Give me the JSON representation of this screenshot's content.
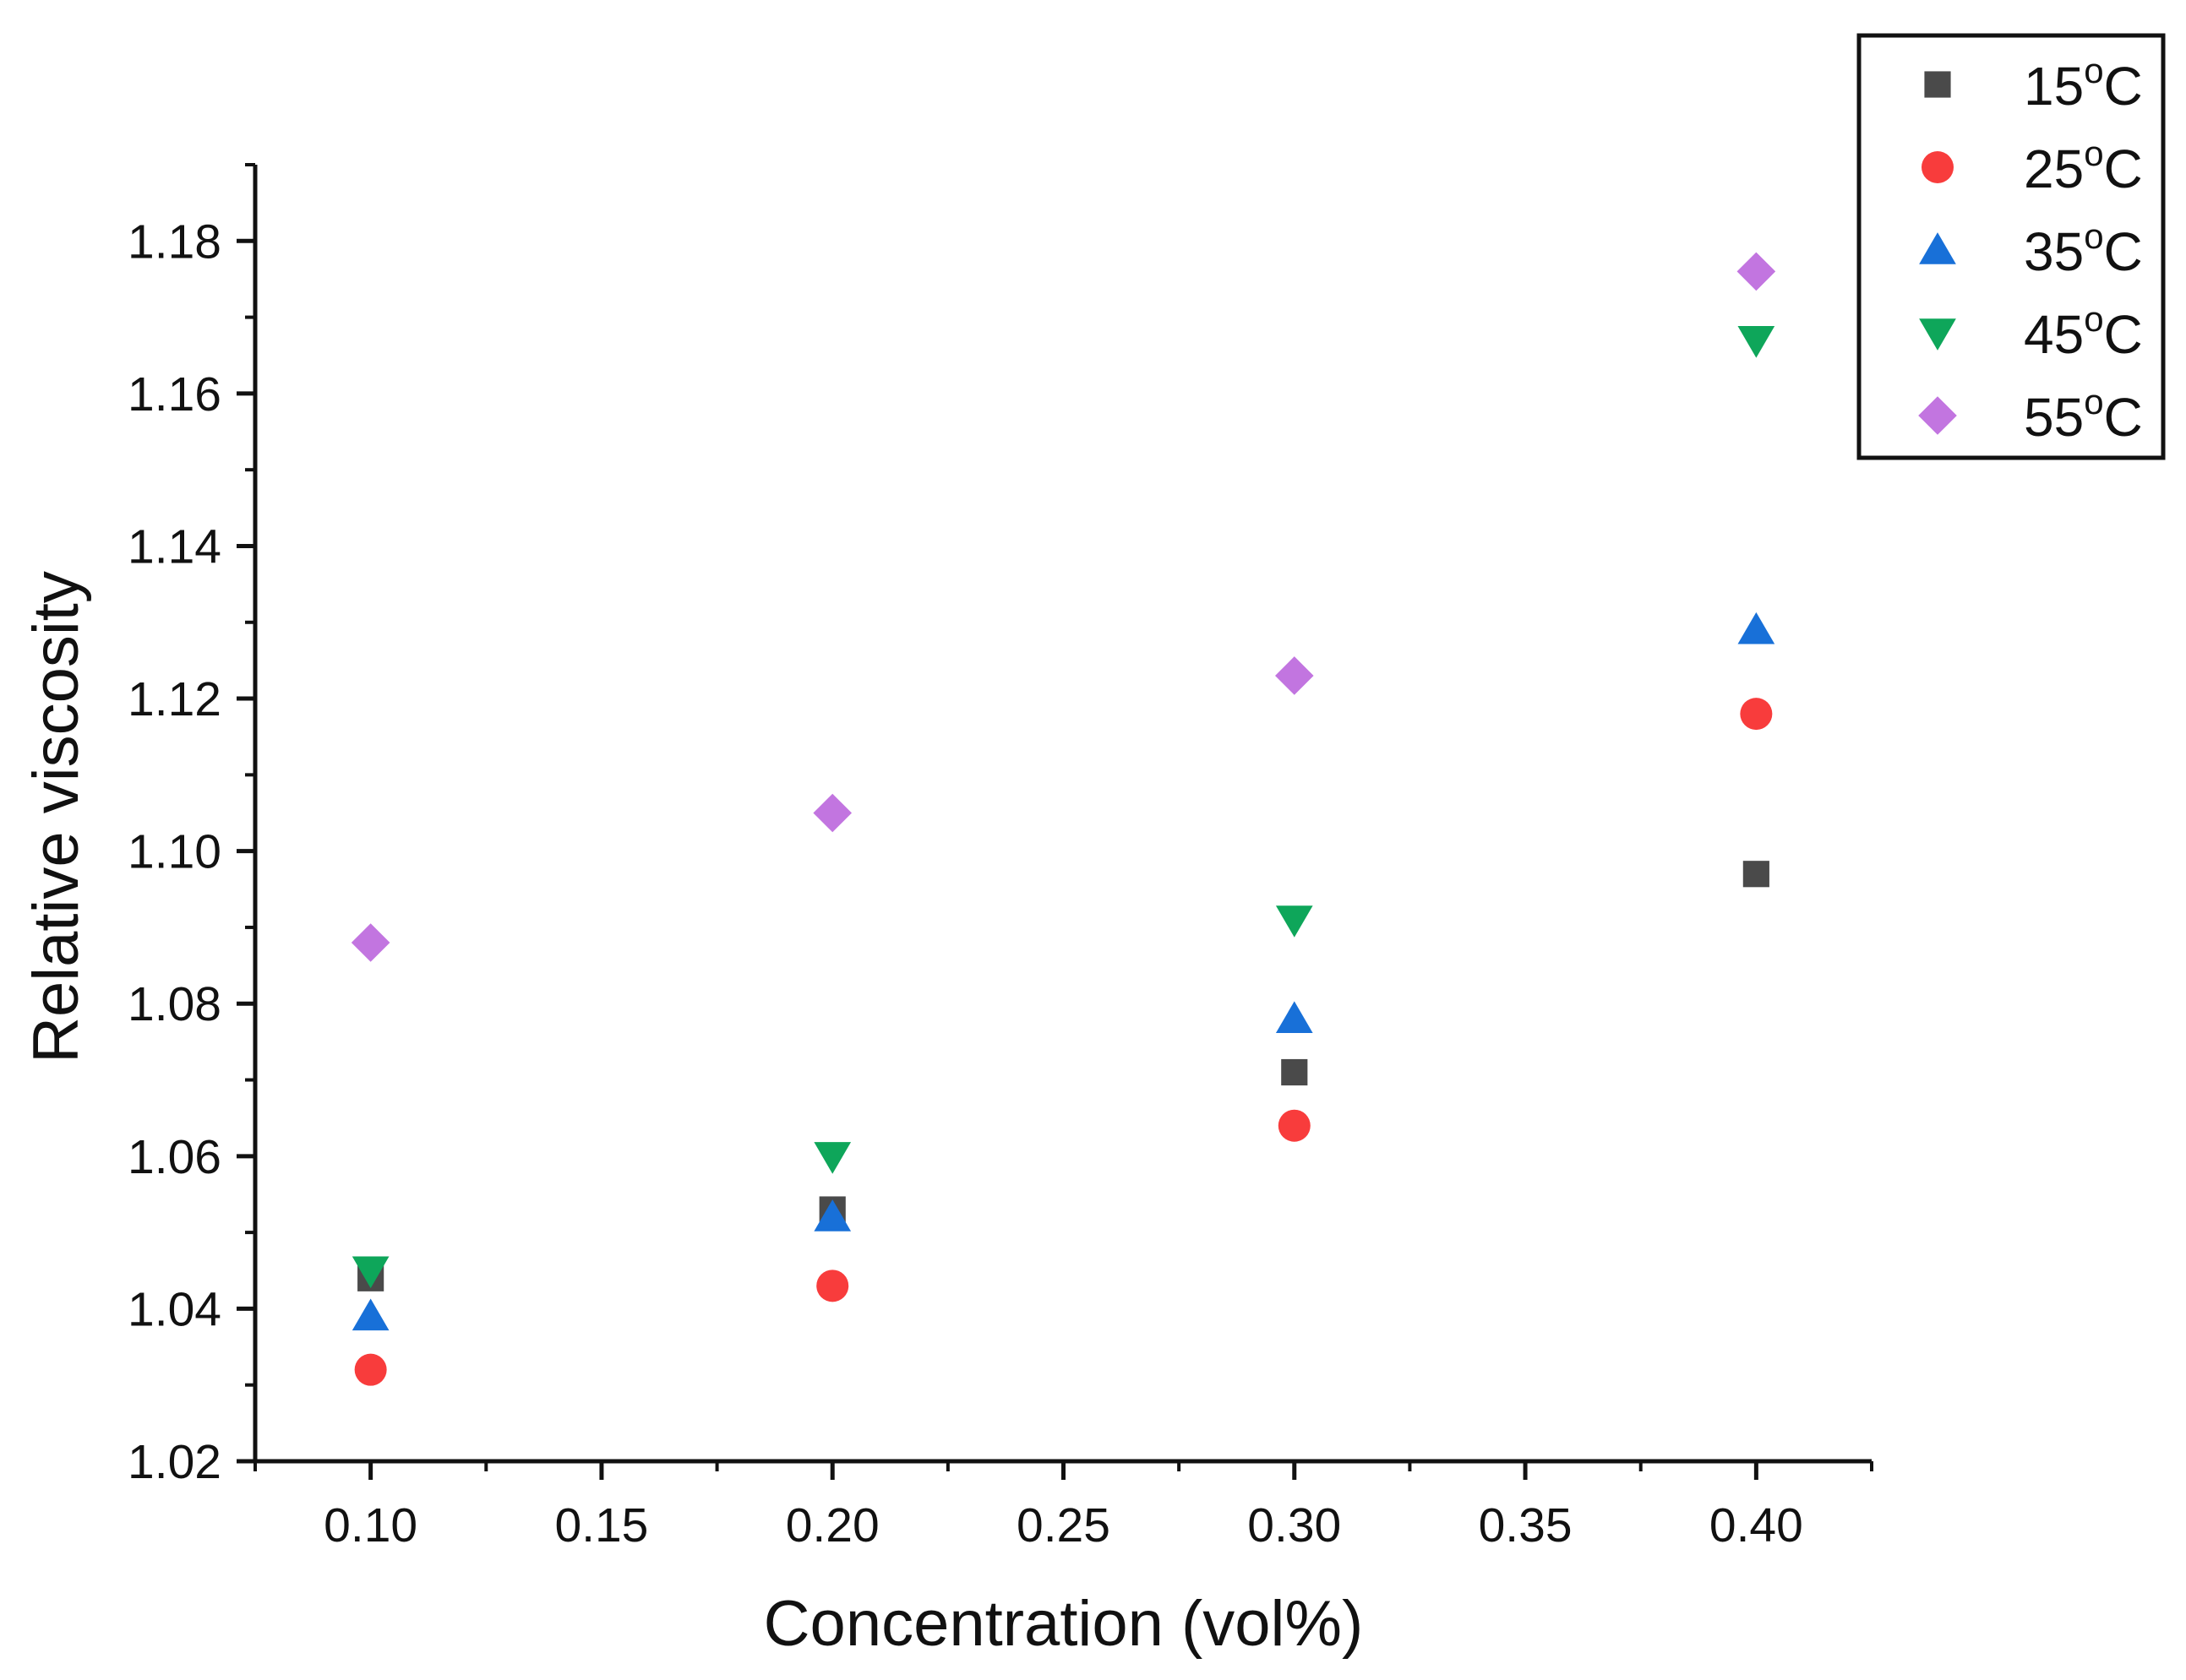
{
  "chart_data": {
    "type": "scatter",
    "title": "",
    "xlabel": "Concentration (vol%)",
    "ylabel": "Relative viscosity",
    "xlim": [
      0.075,
      0.425
    ],
    "ylim": [
      1.02,
      1.19
    ],
    "x_ticks": [
      0.1,
      0.15,
      0.2,
      0.25,
      0.3,
      0.35,
      0.4
    ],
    "x_tick_labels": [
      "0.10",
      "0.15",
      "0.20",
      "0.25",
      "0.30",
      "0.35",
      "0.40"
    ],
    "y_ticks": [
      1.02,
      1.04,
      1.06,
      1.08,
      1.1,
      1.12,
      1.14,
      1.16,
      1.18
    ],
    "y_tick_labels": [
      "1.02",
      "1.04",
      "1.06",
      "1.08",
      "1.10",
      "1.12",
      "1.14",
      "1.16",
      "1.18"
    ],
    "x": [
      0.1,
      0.2,
      0.3,
      0.4
    ],
    "legend_position": "top-right",
    "grid": false,
    "series": [
      {
        "name": "15",
        "unit": "°C",
        "sup": "o",
        "deg": "C",
        "marker": "square",
        "color": "#4a4a4a",
        "values": [
          1.044,
          1.053,
          1.071,
          1.097
        ]
      },
      {
        "name": "25",
        "unit": "°C",
        "sup": "o",
        "deg": "C",
        "marker": "circle",
        "color": "#f83c3c",
        "values": [
          1.032,
          1.043,
          1.064,
          1.118
        ]
      },
      {
        "name": "35",
        "unit": "°C",
        "sup": "o",
        "deg": "C",
        "marker": "triangle-up",
        "color": "#1870d8",
        "values": [
          1.039,
          1.052,
          1.078,
          1.129
        ]
      },
      {
        "name": "45",
        "unit": "°C",
        "sup": "o",
        "deg": "C",
        "marker": "triangle-down",
        "color": "#0ea65a",
        "values": [
          1.045,
          1.06,
          1.091,
          1.167
        ]
      },
      {
        "name": "55",
        "unit": "°C",
        "sup": "o",
        "deg": "C",
        "marker": "diamond",
        "color": "#c275e0",
        "values": [
          1.088,
          1.105,
          1.123,
          1.176
        ]
      }
    ]
  }
}
